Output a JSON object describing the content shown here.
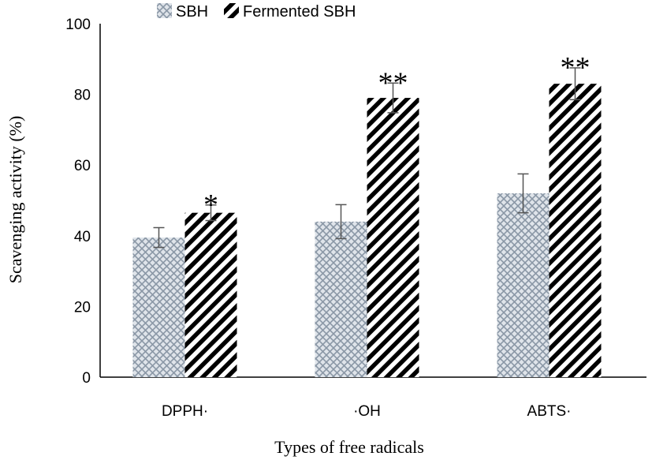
{
  "chart_data": {
    "type": "bar",
    "title": "",
    "xlabel": "Types of free radicals",
    "ylabel": "Scavenging activity (%)",
    "ylim": [
      0,
      100
    ],
    "yticks": [
      "0",
      "20",
      "40",
      "60",
      "80",
      "100"
    ],
    "categories": [
      "DPPH·",
      "·OH",
      "ABTS·"
    ],
    "series": [
      {
        "name": "SBH",
        "values": [
          39.5,
          44.0,
          52.0
        ],
        "errors": [
          2.8,
          4.8,
          5.5
        ],
        "significance": [
          "",
          "",
          ""
        ]
      },
      {
        "name": "Fermented SBH",
        "values": [
          46.5,
          79.0,
          83.0
        ],
        "errors": [
          2.2,
          4.2,
          4.5
        ],
        "significance": [
          "*",
          "**",
          "**"
        ]
      }
    ],
    "legend_position": "top",
    "grid": false
  }
}
